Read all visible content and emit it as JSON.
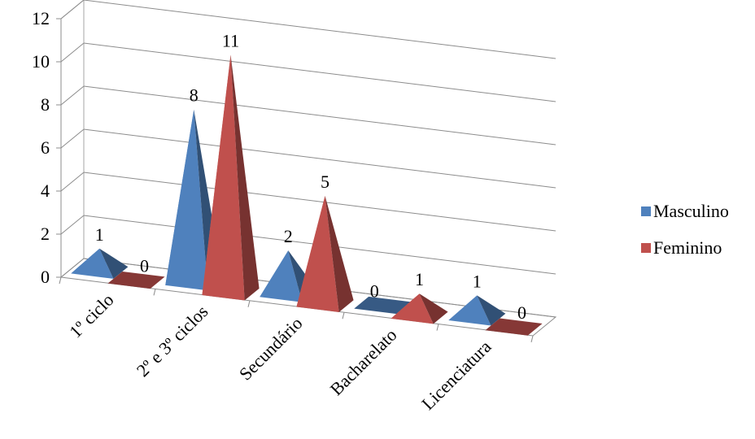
{
  "chart_data": {
    "type": "bar",
    "style": "3d-pyramid",
    "categories": [
      "1º ciclo",
      "2º  e 3º ciclos",
      "Secundário",
      "Bacharelato",
      "Licenciatura"
    ],
    "series": [
      {
        "name": "Masculino",
        "values": [
          1,
          8,
          2,
          0,
          1
        ],
        "color": "#4F81BD"
      },
      {
        "name": "Feminino",
        "values": [
          0,
          11,
          5,
          1,
          0
        ],
        "color": "#C0504D"
      }
    ],
    "yticks": [
      "0",
      "2",
      "4",
      "6",
      "8",
      "10",
      "12"
    ],
    "ylim": [
      0,
      12
    ],
    "grid": true,
    "legend_position": "right",
    "data_labels": true
  }
}
